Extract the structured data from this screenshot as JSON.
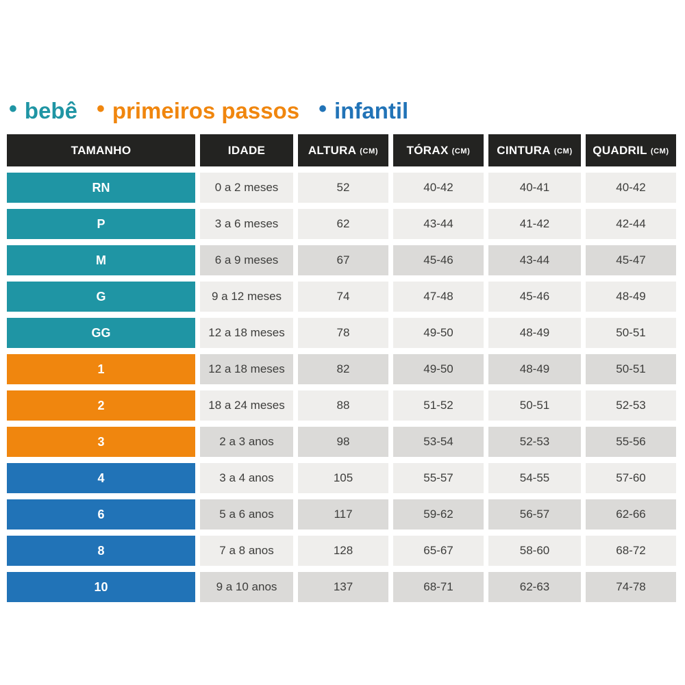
{
  "legend": {
    "bullet": "•",
    "items": [
      {
        "label": "bebê",
        "group": "bebe",
        "color": "#1f95a4"
      },
      {
        "label": "primeiros passos",
        "group": "primeiros-passos",
        "color": "#f0860e"
      },
      {
        "label": "infantil",
        "group": "infantil",
        "color": "#2173b7"
      }
    ]
  },
  "chart_data": {
    "type": "table",
    "title": "",
    "columns": [
      {
        "key": "tamanho",
        "label": "TAMANHO",
        "unit": ""
      },
      {
        "key": "idade",
        "label": "IDADE",
        "unit": ""
      },
      {
        "key": "altura",
        "label": "ALTURA",
        "unit": "(CM)"
      },
      {
        "key": "torax",
        "label": "TÓRAX",
        "unit": "(CM)"
      },
      {
        "key": "cintura",
        "label": "CINTURA",
        "unit": "(CM)"
      },
      {
        "key": "quadril",
        "label": "QUADRIL",
        "unit": "(CM)"
      }
    ],
    "rows": [
      {
        "tamanho": "RN",
        "group": "bebe",
        "shaded": false,
        "idade": "0 a 2 meses",
        "altura": "52",
        "torax": "40-42",
        "cintura": "40-41",
        "quadril": "40-42"
      },
      {
        "tamanho": "P",
        "group": "bebe",
        "shaded": false,
        "idade": "3 a 6 meses",
        "altura": "62",
        "torax": "43-44",
        "cintura": "41-42",
        "quadril": "42-44"
      },
      {
        "tamanho": "M",
        "group": "bebe",
        "shaded": true,
        "idade": "6 a 9 meses",
        "altura": "67",
        "torax": "45-46",
        "cintura": "43-44",
        "quadril": "45-47"
      },
      {
        "tamanho": "G",
        "group": "bebe",
        "shaded": false,
        "idade": "9 a 12 meses",
        "altura": "74",
        "torax": "47-48",
        "cintura": "45-46",
        "quadril": "48-49"
      },
      {
        "tamanho": "GG",
        "group": "bebe",
        "shaded": false,
        "idade": "12 a 18 meses",
        "altura": "78",
        "torax": "49-50",
        "cintura": "48-49",
        "quadril": "50-51"
      },
      {
        "tamanho": "1",
        "group": "primeiros-passos",
        "shaded": true,
        "idade": "12 a 18 meses",
        "altura": "82",
        "torax": "49-50",
        "cintura": "48-49",
        "quadril": "50-51"
      },
      {
        "tamanho": "2",
        "group": "primeiros-passos",
        "shaded": false,
        "idade": "18 a 24 meses",
        "altura": "88",
        "torax": "51-52",
        "cintura": "50-51",
        "quadril": "52-53"
      },
      {
        "tamanho": "3",
        "group": "primeiros-passos",
        "shaded": true,
        "idade": "2 a 3 anos",
        "altura": "98",
        "torax": "53-54",
        "cintura": "52-53",
        "quadril": "55-56"
      },
      {
        "tamanho": "4",
        "group": "infantil",
        "shaded": false,
        "idade": "3 a 4 anos",
        "altura": "105",
        "torax": "55-57",
        "cintura": "54-55",
        "quadril": "57-60"
      },
      {
        "tamanho": "6",
        "group": "infantil",
        "shaded": true,
        "idade": "5 a 6 anos",
        "altura": "117",
        "torax": "59-62",
        "cintura": "56-57",
        "quadril": "62-66"
      },
      {
        "tamanho": "8",
        "group": "infantil",
        "shaded": false,
        "idade": "7 a 8 anos",
        "altura": "128",
        "torax": "65-67",
        "cintura": "58-60",
        "quadril": "68-72"
      },
      {
        "tamanho": "10",
        "group": "infantil",
        "shaded": true,
        "idade": "9 a 10 anos",
        "altura": "137",
        "torax": "68-71",
        "cintura": "62-63",
        "quadril": "74-78"
      }
    ]
  },
  "colors": {
    "page_bg": "#ffffff",
    "header_bg": "#232321",
    "header_text": "#ffffff",
    "cell_light": "#efeeec",
    "cell_dark": "#dbdad8",
    "cell_text": "#3d3d3b",
    "group_bebe": "#1f95a4",
    "group_primeiros_passos": "#f0860e",
    "group_infantil": "#2173b7"
  }
}
